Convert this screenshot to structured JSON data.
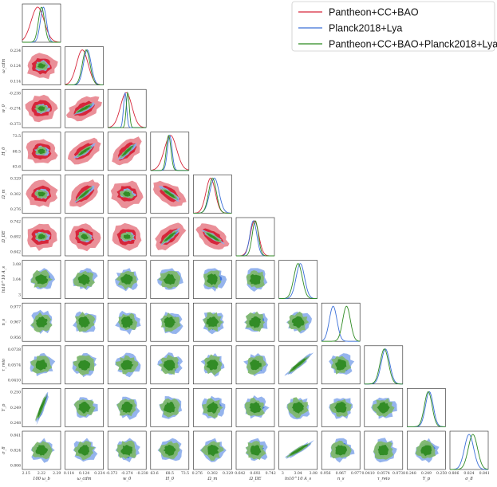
{
  "chart_data": {
    "type": "corner",
    "legend": {
      "position": "top-right",
      "entries": [
        {
          "label": "Pantheon+CC+BAO",
          "color": "#d6263a"
        },
        {
          "label": "Planck2018+Lya",
          "color": "#3a6fd8"
        },
        {
          "label": "Pantheon+CC+BAO+Planck2018+Lya",
          "color": "#2a8a1f"
        }
      ]
    },
    "parameters": [
      {
        "label": "100 ω_b",
        "ticks": [
          "2.15",
          "2.22",
          "2.29"
        ]
      },
      {
        "label": "ω_cdm",
        "ticks": [
          "0.114",
          "0.124",
          "0.234"
        ]
      },
      {
        "label": "w_0",
        "ticks": [
          "-0.373",
          "-0.274",
          "-0.238"
        ]
      },
      {
        "label": "H_0",
        "ticks": [
          "63.6",
          "68.5",
          "73.5"
        ]
      },
      {
        "label": "Ω_m",
        "ticks": [
          "0.276",
          "0.302",
          "0.329"
        ]
      },
      {
        "label": "Ω_DE",
        "ticks": [
          "0.642",
          "0.692",
          "0.742"
        ]
      },
      {
        "label": "ln10^10 A_s",
        "ticks": [
          "3",
          "3.04",
          "3.08"
        ]
      },
      {
        "label": "n_s",
        "ticks": [
          "0.956",
          "0.967",
          "0.977"
        ]
      },
      {
        "label": "τ_reio",
        "ticks": [
          "0.0410",
          "0.0574",
          "0.0738"
        ]
      },
      {
        "label": "Y_p",
        "ticks": [
          "0.248",
          "0.249",
          "0.250"
        ]
      },
      {
        "label": "σ_8",
        "ticks": [
          "0.806",
          "0.824",
          "0.841"
        ]
      }
    ]
  }
}
